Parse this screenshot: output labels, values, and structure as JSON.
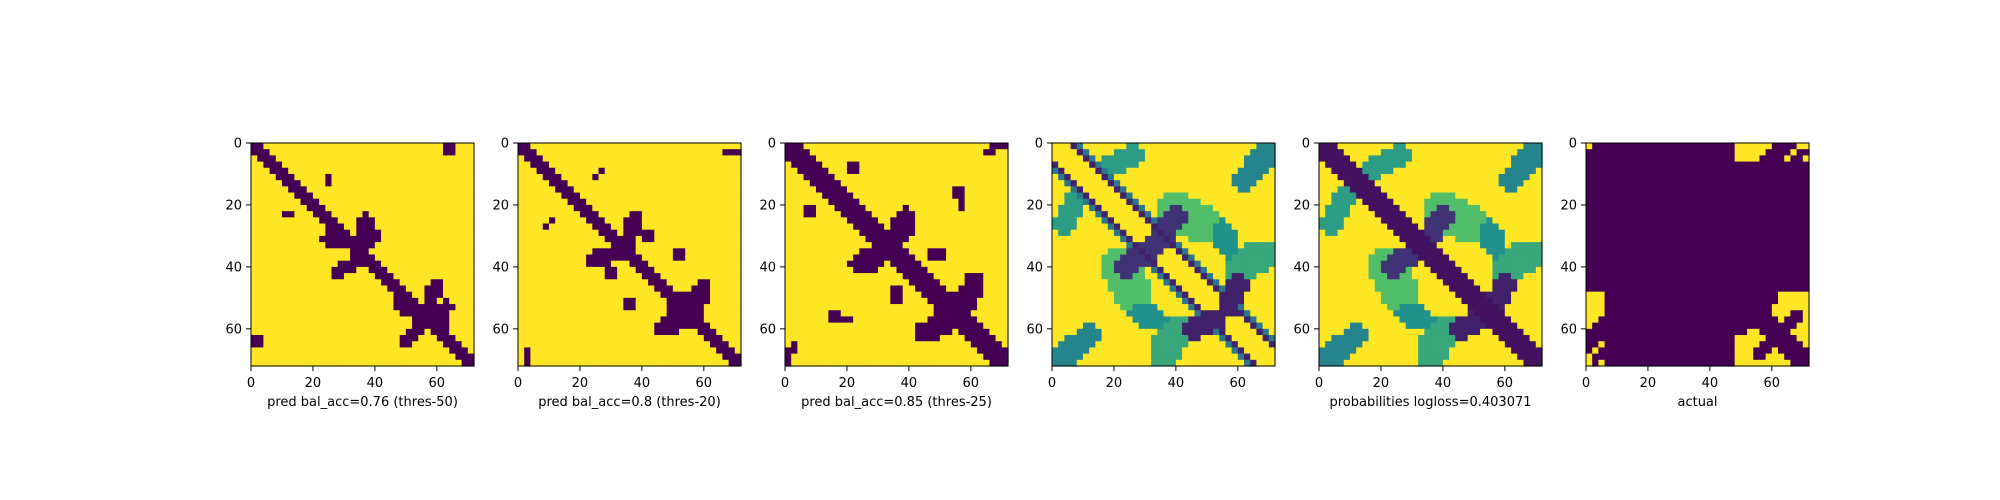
{
  "colors": {
    "low": "#440154",
    "high": "#fde725",
    "viridis": [
      "#440154",
      "#3b528b",
      "#21918c",
      "#5ec962",
      "#fde725"
    ]
  },
  "chart_data": [
    {
      "type": "heatmap",
      "colormap": "viridis-binary",
      "xlabel": "pred bal_acc=0.76 (thres-50)",
      "xlim": [
        0,
        72
      ],
      "ylim": [
        72,
        0
      ],
      "x_ticks": [
        "0",
        "20",
        "40",
        "60"
      ],
      "y_ticks": [
        "0",
        "20",
        "40",
        "60"
      ],
      "pattern": {
        "diagonal_halfwidth": 1.7,
        "features": [
          {
            "kind": "branch",
            "x0": 35,
            "y0": 35,
            "x1": 37,
            "y1": 25,
            "w": 1.2
          },
          {
            "kind": "branch",
            "x0": 35,
            "y0": 35,
            "x1": 40,
            "y1": 30,
            "w": 1.0
          },
          {
            "kind": "branch",
            "x0": 33,
            "y0": 33,
            "x1": 24,
            "y1": 31,
            "w": 1.1
          },
          {
            "kind": "branch",
            "x0": 37,
            "y0": 37,
            "x1": 27,
            "y1": 42,
            "w": 1.0
          },
          {
            "kind": "branch",
            "x0": 56,
            "y0": 56,
            "x1": 60,
            "y1": 46,
            "w": 1.3
          },
          {
            "kind": "branch",
            "x0": 56,
            "y0": 56,
            "x1": 48,
            "y1": 52,
            "w": 1.3
          },
          {
            "kind": "branch",
            "x0": 57,
            "y0": 57,
            "x1": 51,
            "y1": 63,
            "w": 1.0
          },
          {
            "kind": "branch",
            "x0": 57,
            "y0": 57,
            "x1": 63,
            "y1": 53,
            "w": 1.0
          },
          {
            "kind": "branch",
            "x0": 62,
            "y0": 57,
            "x1": 64,
            "y1": 60,
            "w": 0.6
          },
          {
            "kind": "dot",
            "x": 64,
            "y": 2
          },
          {
            "kind": "dot",
            "x": 25,
            "y": 12
          },
          {
            "kind": "dot",
            "x": 12,
            "y": 23
          },
          {
            "kind": "dot",
            "x": 2,
            "y": 64
          },
          {
            "kind": "dot",
            "x": 50,
            "y": 64
          }
        ]
      }
    },
    {
      "type": "heatmap",
      "colormap": "viridis-binary",
      "xlabel": "pred bal_acc=0.8 (thres-20)",
      "xlim": [
        0,
        72
      ],
      "ylim": [
        72,
        0
      ],
      "x_ticks": [
        "0",
        "20",
        "40",
        "60"
      ],
      "y_ticks": [
        "0",
        "20",
        "40",
        "60"
      ],
      "pattern": {
        "diagonal_halfwidth": 2.0,
        "features": [
          {
            "kind": "branch",
            "x0": 34,
            "y0": 34,
            "x1": 38,
            "y1": 24,
            "w": 1.3
          },
          {
            "kind": "branch",
            "x0": 34,
            "y0": 34,
            "x1": 24,
            "y1": 38,
            "w": 1.3
          },
          {
            "kind": "branch",
            "x0": 33,
            "y0": 33,
            "x1": 38,
            "y1": 28,
            "w": 1.0
          },
          {
            "kind": "branch",
            "x0": 33,
            "y0": 33,
            "x1": 28,
            "y1": 38,
            "w": 1.0
          },
          {
            "kind": "branch",
            "x0": 56,
            "y0": 56,
            "x1": 60,
            "y1": 46,
            "w": 1.5
          },
          {
            "kind": "branch",
            "x0": 56,
            "y0": 56,
            "x1": 46,
            "y1": 60,
            "w": 1.5
          },
          {
            "kind": "branch",
            "x0": 52,
            "y0": 52,
            "x1": 58,
            "y1": 48,
            "w": 1.2
          },
          {
            "kind": "branch",
            "x0": 52,
            "y0": 52,
            "x1": 48,
            "y1": 58,
            "w": 1.2
          },
          {
            "kind": "branch",
            "x0": 24,
            "y0": 12,
            "x1": 27,
            "y1": 9,
            "w": 0.6
          },
          {
            "kind": "branch",
            "x0": 12,
            "y0": 24,
            "x1": 9,
            "y1": 27,
            "w": 0.6
          },
          {
            "kind": "branch",
            "x0": 66,
            "y0": 2,
            "x1": 70,
            "y1": 3,
            "w": 0.6
          },
          {
            "kind": "branch",
            "x0": 2,
            "y0": 66,
            "x1": 3,
            "y1": 70,
            "w": 0.6
          },
          {
            "kind": "dot",
            "x": 42,
            "y": 30
          },
          {
            "kind": "dot",
            "x": 30,
            "y": 42
          },
          {
            "kind": "dot",
            "x": 36,
            "y": 52
          },
          {
            "kind": "dot",
            "x": 52,
            "y": 36
          }
        ]
      }
    },
    {
      "type": "heatmap",
      "colormap": "viridis-binary",
      "xlabel": "pred bal_acc=0.85 (thres-25)",
      "xlim": [
        0,
        72
      ],
      "ylim": [
        72,
        0
      ],
      "x_ticks": [
        "0",
        "20",
        "40",
        "60"
      ],
      "y_ticks": [
        "0",
        "20",
        "40",
        "60"
      ],
      "pattern": {
        "diagonal_halfwidth": 2.4,
        "features": [
          {
            "kind": "branch",
            "x0": 34,
            "y0": 34,
            "x1": 39,
            "y1": 24,
            "w": 1.6
          },
          {
            "kind": "branch",
            "x0": 34,
            "y0": 34,
            "x1": 24,
            "y1": 39,
            "w": 1.6
          },
          {
            "kind": "branch",
            "x0": 33,
            "y0": 33,
            "x1": 40,
            "y1": 27,
            "w": 1.2
          },
          {
            "kind": "branch",
            "x0": 33,
            "y0": 33,
            "x1": 27,
            "y1": 40,
            "w": 1.2
          },
          {
            "kind": "branch",
            "x0": 56,
            "y0": 56,
            "x1": 61,
            "y1": 45,
            "w": 1.8
          },
          {
            "kind": "branch",
            "x0": 56,
            "y0": 56,
            "x1": 45,
            "y1": 61,
            "w": 1.8
          },
          {
            "kind": "branch",
            "x0": 53,
            "y0": 53,
            "x1": 60,
            "y1": 47,
            "w": 1.4
          },
          {
            "kind": "branch",
            "x0": 53,
            "y0": 53,
            "x1": 47,
            "y1": 60,
            "w": 1.4
          },
          {
            "kind": "branch",
            "x0": 20,
            "y0": 8,
            "x1": 24,
            "y1": 8,
            "w": 0.7
          },
          {
            "kind": "branch",
            "x0": 8,
            "y0": 20,
            "x1": 8,
            "y1": 24,
            "w": 0.7
          },
          {
            "kind": "branch",
            "x0": 56,
            "y0": 15,
            "x1": 57,
            "y1": 20,
            "w": 0.7
          },
          {
            "kind": "branch",
            "x0": 15,
            "y0": 56,
            "x1": 20,
            "y1": 57,
            "w": 0.7
          },
          {
            "kind": "branch",
            "x0": 47,
            "y0": 36,
            "x1": 52,
            "y1": 36,
            "w": 0.6
          },
          {
            "kind": "branch",
            "x0": 36,
            "y0": 47,
            "x1": 36,
            "y1": 52,
            "w": 0.6
          },
          {
            "kind": "branch",
            "x0": 66,
            "y0": 3,
            "x1": 70,
            "y1": 0,
            "w": 0.8
          },
          {
            "kind": "branch",
            "x0": 3,
            "y0": 66,
            "x1": 0,
            "y1": 70,
            "w": 0.8
          },
          {
            "kind": "dot",
            "x": 62,
            "y": 47
          },
          {
            "kind": "dot",
            "x": 47,
            "y": 62
          }
        ]
      }
    },
    {
      "type": "heatmap",
      "colormap": "viridis",
      "xlabel": "",
      "xlim": [
        0,
        72
      ],
      "ylim": [
        72,
        0
      ],
      "x_ticks": [
        "0",
        "20",
        "40",
        "60"
      ],
      "y_ticks": [
        "0",
        "20",
        "40",
        "60"
      ],
      "pattern": {
        "diagonal_halfwidth": 0,
        "offset_lines": [
          {
            "offset": 3,
            "w": 0.55,
            "v": 0.1
          },
          {
            "offset": 4,
            "w": 0.5,
            "v": 0.4
          }
        ],
        "features": [
          {
            "kind": "blob",
            "x0": 34,
            "y0": 32,
            "x1": 40,
            "y1": 24,
            "w": 1.8,
            "v": 0.15
          },
          {
            "kind": "blob",
            "x0": 32,
            "y0": 34,
            "x1": 24,
            "y1": 40,
            "w": 1.8,
            "v": 0.15
          },
          {
            "kind": "blob",
            "x0": 57,
            "y0": 53,
            "x1": 60,
            "y1": 45,
            "w": 1.8,
            "v": 0.1
          },
          {
            "kind": "blob",
            "x0": 53,
            "y0": 57,
            "x1": 45,
            "y1": 60,
            "w": 1.8,
            "v": 0.1
          },
          {
            "kind": "blob",
            "x0": 18,
            "y0": 8,
            "x1": 26,
            "y1": 4,
            "w": 2.0,
            "v": 0.55
          },
          {
            "kind": "blob",
            "x0": 8,
            "y0": 18,
            "x1": 4,
            "y1": 26,
            "w": 2.0,
            "v": 0.55
          },
          {
            "kind": "blob",
            "x0": 62,
            "y0": 12,
            "x1": 70,
            "y1": 3,
            "w": 2.0,
            "v": 0.45
          },
          {
            "kind": "blob",
            "x0": 12,
            "y0": 62,
            "x1": 3,
            "y1": 70,
            "w": 2.0,
            "v": 0.45
          },
          {
            "kind": "blob",
            "x0": 55,
            "y0": 28,
            "x1": 57,
            "y1": 34,
            "w": 1.8,
            "v": 0.5
          },
          {
            "kind": "blob",
            "x0": 28,
            "y0": 55,
            "x1": 34,
            "y1": 57,
            "w": 1.8,
            "v": 0.5
          },
          {
            "kind": "blob",
            "x0": 22,
            "y0": 40,
            "x1": 26,
            "y1": 48,
            "w": 3.0,
            "v": 0.7
          },
          {
            "kind": "blob",
            "x0": 40,
            "y0": 22,
            "x1": 48,
            "y1": 26,
            "w": 3.0,
            "v": 0.7
          },
          {
            "kind": "blob",
            "x0": 60,
            "y0": 40,
            "x1": 68,
            "y1": 36,
            "w": 2.5,
            "v": 0.6
          },
          {
            "kind": "blob",
            "x0": 40,
            "y0": 60,
            "x1": 36,
            "y1": 68,
            "w": 2.5,
            "v": 0.6
          }
        ]
      }
    },
    {
      "type": "heatmap",
      "colormap": "viridis",
      "xlabel": "probabilities logloss=0.403071",
      "xlim": [
        0,
        72
      ],
      "ylim": [
        72,
        0
      ],
      "x_ticks": [
        "0",
        "20",
        "40",
        "60"
      ],
      "y_ticks": [
        "0",
        "20",
        "40",
        "60"
      ],
      "pattern": {
        "diagonal_halfwidth": 2.2,
        "diagonal_value": 0.05,
        "features": [
          {
            "kind": "blob",
            "x0": 34,
            "y0": 32,
            "x1": 40,
            "y1": 24,
            "w": 1.8,
            "v": 0.15
          },
          {
            "kind": "blob",
            "x0": 32,
            "y0": 34,
            "x1": 24,
            "y1": 40,
            "w": 1.8,
            "v": 0.15
          },
          {
            "kind": "blob",
            "x0": 57,
            "y0": 53,
            "x1": 60,
            "y1": 45,
            "w": 1.8,
            "v": 0.1
          },
          {
            "kind": "blob",
            "x0": 53,
            "y0": 57,
            "x1": 45,
            "y1": 60,
            "w": 1.8,
            "v": 0.1
          },
          {
            "kind": "blob",
            "x0": 18,
            "y0": 8,
            "x1": 26,
            "y1": 4,
            "w": 2.0,
            "v": 0.55
          },
          {
            "kind": "blob",
            "x0": 8,
            "y0": 18,
            "x1": 4,
            "y1": 26,
            "w": 2.0,
            "v": 0.55
          },
          {
            "kind": "blob",
            "x0": 62,
            "y0": 12,
            "x1": 70,
            "y1": 3,
            "w": 2.0,
            "v": 0.45
          },
          {
            "kind": "blob",
            "x0": 12,
            "y0": 62,
            "x1": 3,
            "y1": 70,
            "w": 2.0,
            "v": 0.45
          },
          {
            "kind": "blob",
            "x0": 55,
            "y0": 28,
            "x1": 57,
            "y1": 34,
            "w": 1.8,
            "v": 0.5
          },
          {
            "kind": "blob",
            "x0": 28,
            "y0": 55,
            "x1": 34,
            "y1": 57,
            "w": 1.8,
            "v": 0.5
          },
          {
            "kind": "blob",
            "x0": 22,
            "y0": 40,
            "x1": 26,
            "y1": 48,
            "w": 3.0,
            "v": 0.7
          },
          {
            "kind": "blob",
            "x0": 40,
            "y0": 22,
            "x1": 48,
            "y1": 26,
            "w": 3.0,
            "v": 0.7
          },
          {
            "kind": "blob",
            "x0": 60,
            "y0": 40,
            "x1": 68,
            "y1": 36,
            "w": 2.5,
            "v": 0.6
          },
          {
            "kind": "blob",
            "x0": 40,
            "y0": 60,
            "x1": 36,
            "y1": 68,
            "w": 2.5,
            "v": 0.6
          }
        ]
      }
    },
    {
      "type": "heatmap",
      "colormap": "viridis-binary",
      "xlabel": "actual",
      "xlim": [
        0,
        72
      ],
      "ylim": [
        72,
        0
      ],
      "x_ticks": [
        "0",
        "20",
        "40",
        "60"
      ],
      "y_ticks": [
        "0",
        "20",
        "40",
        "60"
      ],
      "pattern": {
        "block_low": [
          {
            "x0": 7,
            "x1": 48,
            "y0": 0,
            "y1": 72
          },
          {
            "x0": 0,
            "x1": 72,
            "y0": 7,
            "y1": 48
          }
        ],
        "features": [
          {
            "kind": "branch",
            "x0": 3,
            "y0": 0,
            "x1": 5,
            "y1": 6,
            "w": 1.0
          },
          {
            "kind": "branch",
            "x0": 0,
            "y0": 3,
            "x1": 6,
            "y1": 5,
            "w": 1.0
          },
          {
            "kind": "branch",
            "x0": 58,
            "y0": 7,
            "x1": 66,
            "y1": 0,
            "w": 1.3
          },
          {
            "kind": "branch",
            "x0": 66,
            "y0": 7,
            "x1": 70,
            "y1": 3,
            "w": 1.0
          },
          {
            "kind": "branch",
            "x0": 7,
            "y0": 58,
            "x1": 0,
            "y1": 66,
            "w": 1.3
          },
          {
            "kind": "branch",
            "x0": 7,
            "y0": 66,
            "x1": 3,
            "y1": 70,
            "w": 1.0
          },
          {
            "kind": "branch",
            "x0": 48,
            "y0": 48,
            "x1": 72,
            "y1": 72,
            "w": 1.8
          },
          {
            "kind": "branch",
            "x0": 56,
            "y0": 56,
            "x1": 60,
            "y1": 48,
            "w": 1.4
          },
          {
            "kind": "branch",
            "x0": 56,
            "y0": 56,
            "x1": 48,
            "y1": 60,
            "w": 1.4
          },
          {
            "kind": "branch",
            "x0": 53,
            "y0": 53,
            "x1": 58,
            "y1": 48,
            "w": 1.2
          },
          {
            "kind": "branch",
            "x0": 53,
            "y0": 53,
            "x1": 48,
            "y1": 58,
            "w": 1.2
          },
          {
            "kind": "branch",
            "x0": 62,
            "y0": 62,
            "x1": 68,
            "y1": 56,
            "w": 0.9
          },
          {
            "kind": "branch",
            "x0": 62,
            "y0": 62,
            "x1": 56,
            "y1": 68,
            "w": 0.9
          }
        ]
      }
    }
  ]
}
